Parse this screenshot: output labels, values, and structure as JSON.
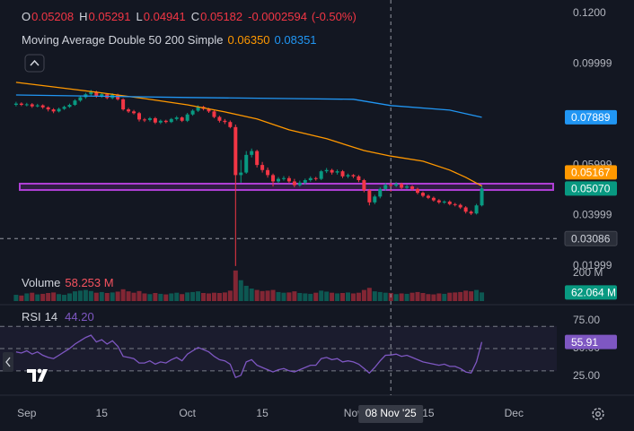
{
  "chart_data": [
    {
      "type": "candlestick",
      "x": [
        "2025-08-30",
        "2025-08-31",
        "2025-09-01",
        "2025-09-02",
        "2025-09-03",
        "2025-09-04",
        "2025-09-05",
        "2025-09-06",
        "2025-09-07",
        "2025-09-08",
        "2025-09-09",
        "2025-09-10",
        "2025-09-11",
        "2025-09-12",
        "2025-09-13",
        "2025-09-14",
        "2025-09-15",
        "2025-09-16",
        "2025-09-17",
        "2025-09-18",
        "2025-09-19",
        "2025-09-20",
        "2025-09-21",
        "2025-09-22",
        "2025-09-23",
        "2025-09-24",
        "2025-09-25",
        "2025-09-26",
        "2025-09-27",
        "2025-09-28",
        "2025-09-29",
        "2025-09-30",
        "2025-10-01",
        "2025-10-02",
        "2025-10-03",
        "2025-10-04",
        "2025-10-05",
        "2025-10-06",
        "2025-10-07",
        "2025-10-08",
        "2025-10-09",
        "2025-10-10",
        "2025-10-11",
        "2025-10-12",
        "2025-10-13",
        "2025-10-14",
        "2025-10-15",
        "2025-10-16",
        "2025-10-17",
        "2025-10-18",
        "2025-10-19",
        "2025-10-20",
        "2025-10-21",
        "2025-10-22",
        "2025-10-23",
        "2025-10-24",
        "2025-10-25",
        "2025-10-26",
        "2025-10-27",
        "2025-10-28",
        "2025-10-29",
        "2025-10-30",
        "2025-10-31",
        "2025-11-01",
        "2025-11-02",
        "2025-11-03",
        "2025-11-04",
        "2025-11-05",
        "2025-11-06",
        "2025-11-07",
        "2025-11-08",
        "2025-11-09",
        "2025-11-10",
        "2025-11-11",
        "2025-11-12",
        "2025-11-13",
        "2025-11-14",
        "2025-11-15",
        "2025-11-16",
        "2025-11-17",
        "2025-11-18",
        "2025-11-19",
        "2025-11-20",
        "2025-11-21",
        "2025-11-22",
        "2025-11-23",
        "2025-11-24",
        "2025-11-25"
      ],
      "ohlc": [
        [
          0.0838,
          0.085,
          0.0832,
          0.0843
        ],
        [
          0.0843,
          0.0848,
          0.0833,
          0.0838
        ],
        [
          0.0838,
          0.0846,
          0.0832,
          0.084
        ],
        [
          0.084,
          0.0845,
          0.0826,
          0.0832
        ],
        [
          0.0832,
          0.0842,
          0.0828,
          0.0836
        ],
        [
          0.0836,
          0.084,
          0.0822,
          0.0828
        ],
        [
          0.0828,
          0.0832,
          0.0812,
          0.082
        ],
        [
          0.082,
          0.0825,
          0.0805,
          0.0812
        ],
        [
          0.0812,
          0.0827,
          0.0808,
          0.0822
        ],
        [
          0.0822,
          0.0835,
          0.0818,
          0.083
        ],
        [
          0.083,
          0.0843,
          0.0826,
          0.0838
        ],
        [
          0.0838,
          0.086,
          0.0834,
          0.0855
        ],
        [
          0.0855,
          0.0874,
          0.085,
          0.0868
        ],
        [
          0.0868,
          0.0886,
          0.0862,
          0.088
        ],
        [
          0.088,
          0.0897,
          0.0874,
          0.089
        ],
        [
          0.089,
          0.0894,
          0.0866,
          0.0872
        ],
        [
          0.0872,
          0.0886,
          0.0866,
          0.088
        ],
        [
          0.088,
          0.0884,
          0.086,
          0.0865
        ],
        [
          0.0865,
          0.0884,
          0.086,
          0.0878
        ],
        [
          0.0878,
          0.0882,
          0.0855,
          0.086
        ],
        [
          0.086,
          0.0864,
          0.0815,
          0.082
        ],
        [
          0.082,
          0.0826,
          0.0806,
          0.0812
        ],
        [
          0.0812,
          0.0818,
          0.08,
          0.0805
        ],
        [
          0.0805,
          0.081,
          0.0772,
          0.078
        ],
        [
          0.078,
          0.0786,
          0.077,
          0.0778
        ],
        [
          0.0778,
          0.079,
          0.0772,
          0.0785
        ],
        [
          0.0785,
          0.079,
          0.0762,
          0.0768
        ],
        [
          0.0768,
          0.078,
          0.0762,
          0.0775
        ],
        [
          0.0775,
          0.0779,
          0.0765,
          0.077
        ],
        [
          0.077,
          0.0786,
          0.0766,
          0.0782
        ],
        [
          0.0782,
          0.0794,
          0.0776,
          0.0788
        ],
        [
          0.0788,
          0.0792,
          0.077,
          0.0775
        ],
        [
          0.0775,
          0.0806,
          0.077,
          0.08
        ],
        [
          0.08,
          0.082,
          0.0795,
          0.0815
        ],
        [
          0.0815,
          0.0836,
          0.081,
          0.083
        ],
        [
          0.083,
          0.0834,
          0.0816,
          0.0822
        ],
        [
          0.0822,
          0.0826,
          0.0806,
          0.0812
        ],
        [
          0.0812,
          0.0816,
          0.0785,
          0.079
        ],
        [
          0.079,
          0.0795,
          0.0768,
          0.0775
        ],
        [
          0.0775,
          0.0782,
          0.0762,
          0.077
        ],
        [
          0.077,
          0.0776,
          0.0745,
          0.075
        ],
        [
          0.075,
          0.076,
          0.02,
          0.056
        ],
        [
          0.056,
          0.062,
          0.053,
          0.057
        ],
        [
          0.057,
          0.0655,
          0.0565,
          0.064
        ],
        [
          0.064,
          0.0665,
          0.063,
          0.0655
        ],
        [
          0.0655,
          0.066,
          0.059,
          0.06
        ],
        [
          0.06,
          0.0612,
          0.057,
          0.058
        ],
        [
          0.058,
          0.059,
          0.055,
          0.056
        ],
        [
          0.056,
          0.0566,
          0.0515,
          0.0535
        ],
        [
          0.0535,
          0.0552,
          0.0528,
          0.0545
        ],
        [
          0.0545,
          0.0556,
          0.0538,
          0.0548
        ],
        [
          0.0548,
          0.0556,
          0.0528,
          0.0535
        ],
        [
          0.0535,
          0.0545,
          0.0512,
          0.052
        ],
        [
          0.052,
          0.0538,
          0.0514,
          0.053
        ],
        [
          0.053,
          0.0546,
          0.0522,
          0.054
        ],
        [
          0.054,
          0.0555,
          0.0534,
          0.0548
        ],
        [
          0.0548,
          0.0553,
          0.0538,
          0.0545
        ],
        [
          0.0545,
          0.058,
          0.054,
          0.0575
        ],
        [
          0.0575,
          0.0588,
          0.0568,
          0.058
        ],
        [
          0.058,
          0.0585,
          0.0562,
          0.057
        ],
        [
          0.057,
          0.0582,
          0.0562,
          0.0575
        ],
        [
          0.0575,
          0.058,
          0.0548,
          0.0555
        ],
        [
          0.0555,
          0.0566,
          0.0548,
          0.056
        ],
        [
          0.056,
          0.0564,
          0.0548,
          0.0555
        ],
        [
          0.0555,
          0.056,
          0.0532,
          0.054
        ],
        [
          0.054,
          0.0545,
          0.0492,
          0.05
        ],
        [
          0.05,
          0.0505,
          0.044,
          0.0452
        ],
        [
          0.0452,
          0.0482,
          0.0445,
          0.0475
        ],
        [
          0.0475,
          0.0512,
          0.0468,
          0.0505
        ],
        [
          0.0505,
          0.0528,
          0.0498,
          0.05208
        ],
        [
          0.05208,
          0.05291,
          0.04941,
          0.05182
        ],
        [
          0.05182,
          0.0532,
          0.0512,
          0.0525
        ],
        [
          0.0525,
          0.053,
          0.0504,
          0.051
        ],
        [
          0.051,
          0.0522,
          0.0505,
          0.0515
        ],
        [
          0.0515,
          0.052,
          0.0498,
          0.0505
        ],
        [
          0.0505,
          0.051,
          0.0484,
          0.049
        ],
        [
          0.049,
          0.0495,
          0.0472,
          0.0478
        ],
        [
          0.0478,
          0.0483,
          0.0465,
          0.047
        ],
        [
          0.047,
          0.0475,
          0.0455,
          0.046
        ],
        [
          0.046,
          0.0465,
          0.0446,
          0.0452
        ],
        [
          0.0452,
          0.046,
          0.0446,
          0.0455
        ],
        [
          0.0455,
          0.046,
          0.044,
          0.0445
        ],
        [
          0.0445,
          0.045,
          0.0436,
          0.0442
        ],
        [
          0.0442,
          0.0447,
          0.0426,
          0.0432
        ],
        [
          0.0432,
          0.0437,
          0.0408,
          0.0415
        ],
        [
          0.0415,
          0.042,
          0.0402,
          0.0408
        ],
        [
          0.0408,
          0.0446,
          0.0404,
          0.044
        ],
        [
          0.044,
          0.052,
          0.0436,
          0.0507
        ]
      ],
      "up_color": "#089981",
      "down_color": "#f23645",
      "xlim": [
        "2025-08-27",
        "2025-12-09"
      ],
      "xticks": [
        {
          "value": "2025-09-01",
          "label": "Sep"
        },
        {
          "value": "2025-09-15",
          "label": "15"
        },
        {
          "value": "2025-10-01",
          "label": "Oct"
        },
        {
          "value": "2025-10-15",
          "label": "15"
        },
        {
          "value": "2025-11-01",
          "label": "Nov"
        },
        {
          "value": "2025-11-15",
          "label": "15"
        },
        {
          "value": "2025-12-01",
          "label": "Dec"
        }
      ],
      "ylim": [
        0.0189,
        0.1253
      ],
      "yticks": [
        {
          "value": 0.12,
          "label": "0.1200"
        },
        0.09999,
        0.05999,
        0.03999,
        0.01999
      ],
      "ohlc_legend": [
        {
          "name": "O",
          "value": 0.05208
        },
        {
          "name": "H",
          "value": 0.05291
        },
        {
          "name": "L",
          "value": 0.04941
        },
        {
          "name": "C",
          "value": 0.05182
        }
      ],
      "change": -0.0002594,
      "change_pct": {
        "value": -0.5,
        "label": "(-0.50%)"
      },
      "indicator": "Moving Average Double 50 200 Simple",
      "lines": [
        {
          "color": "#ff9800",
          "x": [
            "2025-08-30",
            "2025-09-06",
            "2025-09-14",
            "2025-09-23",
            "2025-10-01",
            "2025-10-08",
            "2025-10-14",
            "2025-10-20",
            "2025-10-27",
            "2025-11-03",
            "2025-11-08",
            "2025-11-14",
            "2025-11-19",
            "2025-11-22",
            "2025-11-25"
          ],
          "values": [
            0.0927,
            0.0909,
            0.0888,
            0.0863,
            0.0838,
            0.081,
            0.0782,
            0.0739,
            0.0704,
            0.0657,
            0.0635,
            0.0615,
            0.058,
            0.0551,
            0.05167
          ],
          "legend_value": {
            "value": 0.0635,
            "label": "0.06350"
          },
          "last_label": 0.05167
        },
        {
          "color": "#2196f3",
          "x": [
            "2025-08-30",
            "2025-10-01",
            "2025-10-20",
            "2025-11-01",
            "2025-11-08",
            "2025-11-19",
            "2025-11-25"
          ],
          "values": [
            0.0877,
            0.0867,
            0.0863,
            0.086,
            0.08351,
            0.0817,
            0.07889
          ],
          "legend_value": 0.08351,
          "last_label": 0.07889
        }
      ],
      "zone": {
        "from": 0.0501,
        "to": 0.0526,
        "color": "#b03fd6"
      },
      "hline": {
        "value": 0.03086
      },
      "last_price": {
        "value": 0.0507,
        "label": "0.05070",
        "color": "#089981"
      },
      "crosshair": {
        "x": "2025-11-08",
        "label": "08 Nov '25"
      }
    },
    {
      "type": "bar",
      "title": "Volume",
      "values": [
        45,
        40,
        55,
        60,
        48,
        52,
        58,
        62,
        50,
        45,
        55,
        70,
        75,
        80,
        72,
        60,
        65,
        58,
        62,
        68,
        85,
        70,
        60,
        72,
        55,
        50,
        58,
        52,
        48,
        55,
        60,
        50,
        62,
        65,
        70,
        58,
        55,
        60,
        58,
        62,
        75,
        220,
        150,
        110,
        90,
        80,
        72,
        75,
        80,
        65,
        60,
        62,
        70,
        58,
        55,
        52,
        60,
        75,
        68,
        60,
        55,
        58,
        62,
        55,
        60,
        80,
        95,
        70,
        65,
        60,
        58.253,
        50,
        55,
        52,
        60,
        65,
        58,
        50,
        48,
        55,
        52,
        60,
        62,
        65,
        75,
        70,
        80,
        62.064
      ],
      "legend_value": {
        "value": 58.253,
        "label": "58.253 M"
      },
      "last_label": {
        "value": 62.064,
        "label": "62.064 M",
        "color": "#089981"
      },
      "ylim": [
        0,
        232
      ],
      "yticks": [
        {
          "value": 200,
          "label": "200 M"
        }
      ]
    },
    {
      "type": "line",
      "title": "RSI",
      "period": 14,
      "color": "#7e57c2",
      "values": [
        47,
        46,
        48,
        45,
        47,
        44,
        42,
        41,
        44,
        47,
        50,
        54,
        57,
        60,
        62,
        56,
        58,
        54,
        57,
        52,
        43,
        42,
        41,
        37,
        37,
        39,
        36,
        38,
        37,
        40,
        42,
        39,
        45,
        48,
        51,
        49,
        47,
        43,
        40,
        39,
        36,
        24,
        26,
        38,
        40,
        35,
        33,
        31,
        29,
        31,
        32,
        30,
        29,
        31,
        33,
        35,
        35,
        41,
        42,
        40,
        41,
        38,
        39,
        38,
        36,
        32,
        28,
        33,
        39,
        44,
        44.2,
        45,
        43,
        44,
        42,
        40,
        38,
        37,
        36,
        35,
        36,
        34,
        34,
        32,
        29,
        28,
        38,
        55.91
      ],
      "legend_value": {
        "value": 44.2,
        "label": "44.20"
      },
      "last_label": 55.91,
      "bands": [
        30,
        50,
        70
      ],
      "ylim": [
        8.9,
        89.5
      ],
      "yticks": [
        {
          "value": 75,
          "label": "75.00"
        },
        {
          "value": 50,
          "label": "50.00"
        },
        {
          "value": 25,
          "label": "25.00"
        }
      ]
    }
  ]
}
